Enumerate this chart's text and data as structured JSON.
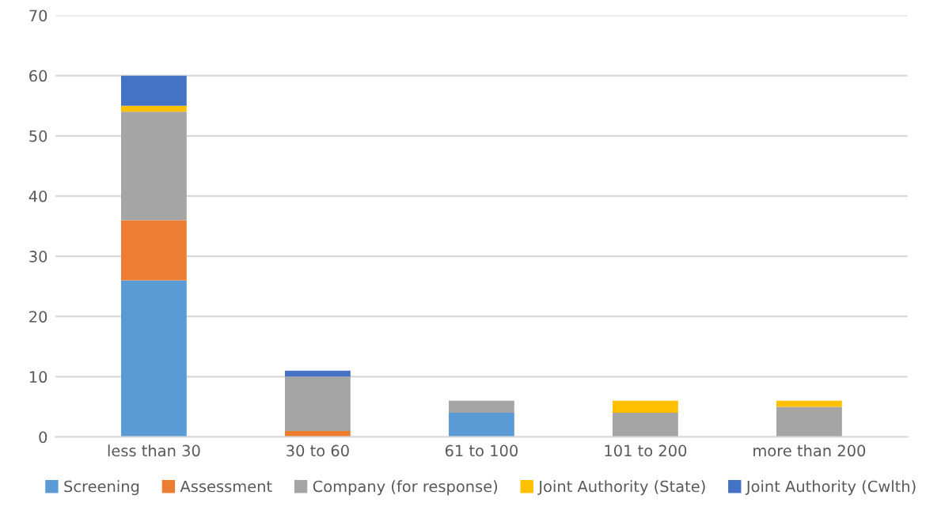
{
  "chart_data": {
    "type": "bar",
    "stacked": true,
    "categories": [
      "less than 30",
      "30 to 60",
      "61 to 100",
      "101 to 200",
      "more than 200"
    ],
    "series": [
      {
        "name": "Screening",
        "color": "#5b9bd5",
        "values": [
          26,
          0,
          4,
          0,
          0
        ]
      },
      {
        "name": "Assessment",
        "color": "#ed7d31",
        "values": [
          10,
          1,
          0,
          0,
          0
        ]
      },
      {
        "name": "Company (for response)",
        "color": "#a5a5a5",
        "values": [
          18,
          9,
          2,
          4,
          5
        ]
      },
      {
        "name": "Joint Authority (State)",
        "color": "#ffc000",
        "values": [
          1,
          0,
          0,
          2,
          1
        ]
      },
      {
        "name": "Joint Authority (Cwlth)",
        "color": "#4472c4",
        "values": [
          5,
          1,
          0,
          0,
          0
        ]
      }
    ],
    "ylim": [
      0,
      70
    ],
    "yticks": [
      0,
      10,
      20,
      30,
      40,
      50,
      60,
      70
    ],
    "grid": "y",
    "legend": "bottom"
  }
}
